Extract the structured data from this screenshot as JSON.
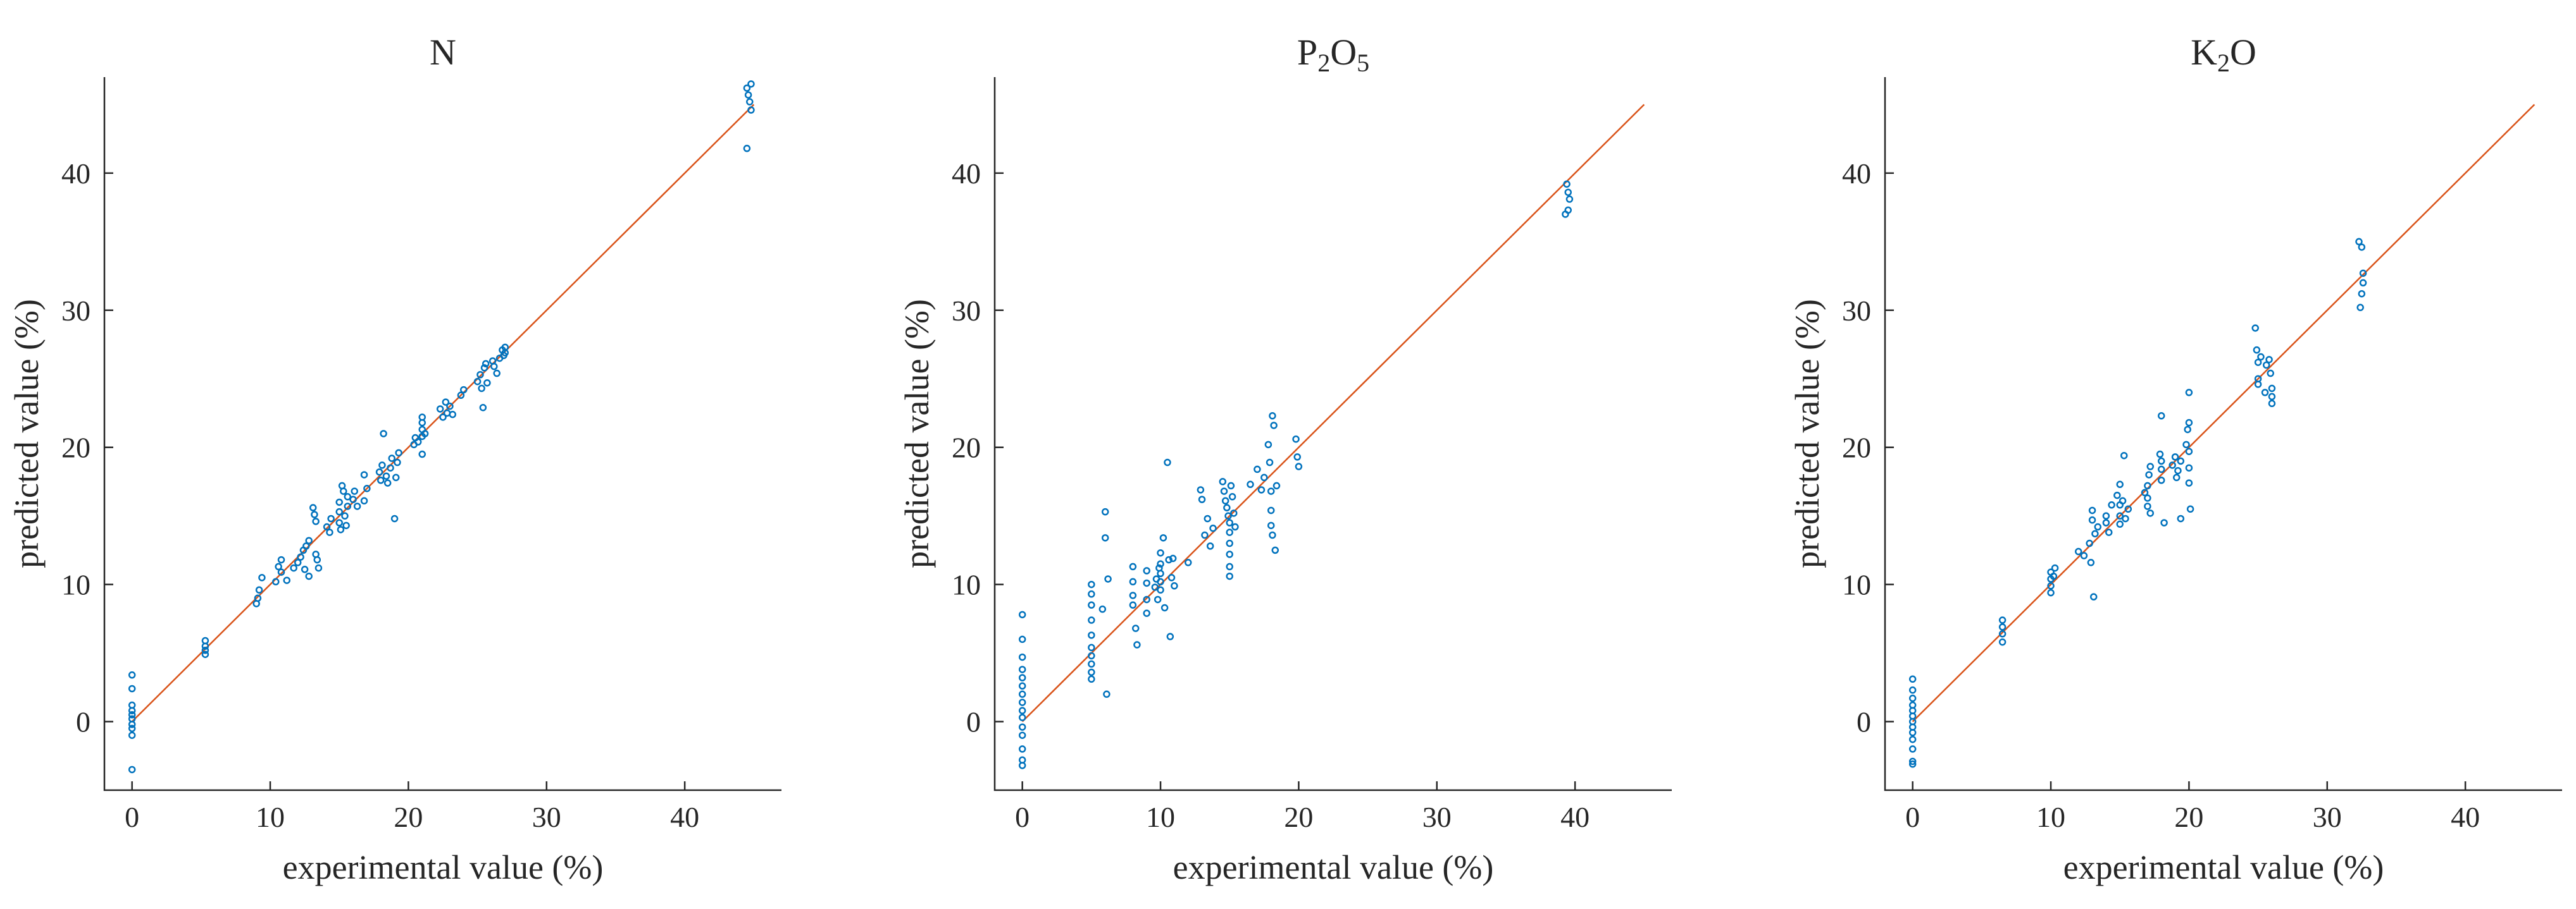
{
  "colors": {
    "points": "#0072BD",
    "reference_line": "#D95319",
    "axes": "#262626"
  },
  "chart_data": [
    {
      "type": "scatter",
      "title": "N",
      "title_parts": [
        [
          "N",
          "n"
        ]
      ],
      "xlabel": "experimental value (%)",
      "ylabel": "predicted value (%)",
      "xlim": [
        -2,
        47
      ],
      "ylim": [
        -5,
        47
      ],
      "xticks": [
        0,
        10,
        20,
        30,
        40
      ],
      "yticks": [
        0,
        10,
        20,
        30,
        40
      ],
      "x_tick_labels": [
        "0",
        "10",
        "20",
        "30",
        "40"
      ],
      "y_tick_labels": [
        "0",
        "10",
        "20",
        "30",
        "40"
      ],
      "reference_line": {
        "from": [
          0,
          0
        ],
        "to": [
          45,
          45
        ]
      },
      "points": [
        [
          0,
          3.4
        ],
        [
          0,
          2.4
        ],
        [
          0,
          1.2
        ],
        [
          0,
          0.8
        ],
        [
          0,
          0.5
        ],
        [
          0,
          0.2
        ],
        [
          0,
          -0.2
        ],
        [
          0,
          -0.5
        ],
        [
          0,
          -1.0
        ],
        [
          0,
          -3.5
        ],
        [
          5.3,
          5.9
        ],
        [
          5.3,
          5.5
        ],
        [
          5.3,
          5.2
        ],
        [
          5.3,
          4.9
        ],
        [
          9,
          8.6
        ],
        [
          9.1,
          9.0
        ],
        [
          9.2,
          9.6
        ],
        [
          9.4,
          10.5
        ],
        [
          10.4,
          10.2
        ],
        [
          10.6,
          11.3
        ],
        [
          10.8,
          11.8
        ],
        [
          10.8,
          10.9
        ],
        [
          11.2,
          10.3
        ],
        [
          11.7,
          11.2
        ],
        [
          12,
          11.6
        ],
        [
          12.2,
          12.0
        ],
        [
          12.4,
          12.5
        ],
        [
          12.5,
          11.1
        ],
        [
          12.6,
          12.8
        ],
        [
          12.8,
          13.2
        ],
        [
          12.8,
          10.6
        ],
        [
          13.1,
          15.6
        ],
        [
          13.2,
          15.1
        ],
        [
          13.3,
          14.6
        ],
        [
          13.3,
          12.2
        ],
        [
          13.4,
          11.8
        ],
        [
          13.5,
          11.2
        ],
        [
          14.1,
          14.2
        ],
        [
          14.3,
          13.8
        ],
        [
          14.4,
          14.8
        ],
        [
          15,
          16.0
        ],
        [
          15,
          15.3
        ],
        [
          15,
          14.5
        ],
        [
          15.1,
          14.0
        ],
        [
          15.2,
          17.2
        ],
        [
          15.3,
          16.8
        ],
        [
          15.4,
          15.0
        ],
        [
          15.5,
          14.3
        ],
        [
          15.6,
          16.4
        ],
        [
          15.6,
          15.7
        ],
        [
          16,
          16.2
        ],
        [
          16.1,
          16.8
        ],
        [
          16.3,
          15.7
        ],
        [
          16.8,
          16.1
        ],
        [
          16.8,
          18.0
        ],
        [
          17,
          17.0
        ],
        [
          17.9,
          18.2
        ],
        [
          18,
          17.6
        ],
        [
          18.1,
          18.7
        ],
        [
          18.2,
          21.0
        ],
        [
          18.4,
          17.9
        ],
        [
          18.5,
          17.4
        ],
        [
          18.7,
          18.5
        ],
        [
          18.8,
          19.2
        ],
        [
          19,
          14.8
        ],
        [
          19.1,
          17.8
        ],
        [
          19.2,
          18.9
        ],
        [
          19.3,
          19.6
        ],
        [
          20.4,
          20.2
        ],
        [
          20.5,
          20.7
        ],
        [
          20.7,
          20.4
        ],
        [
          21,
          21.3
        ],
        [
          21,
          21.8
        ],
        [
          21,
          22.2
        ],
        [
          21,
          20.8
        ],
        [
          21,
          19.5
        ],
        [
          21.2,
          21.0
        ],
        [
          22.3,
          22.8
        ],
        [
          22.5,
          22.2
        ],
        [
          22.7,
          23.3
        ],
        [
          22.8,
          22.5
        ],
        [
          23,
          23.0
        ],
        [
          23.2,
          22.4
        ],
        [
          23.8,
          23.8
        ],
        [
          24,
          24.2
        ],
        [
          25,
          24.8
        ],
        [
          25.2,
          25.3
        ],
        [
          25.3,
          24.3
        ],
        [
          25.4,
          22.9
        ],
        [
          25.5,
          25.8
        ],
        [
          25.6,
          26.1
        ],
        [
          25.7,
          24.7
        ],
        [
          26.1,
          26.3
        ],
        [
          26.2,
          25.9
        ],
        [
          26.4,
          25.4
        ],
        [
          26.6,
          26.5
        ],
        [
          26.8,
          27.1
        ],
        [
          26.9,
          26.7
        ],
        [
          27,
          27.3
        ],
        [
          27,
          26.9
        ],
        [
          44.5,
          46.2
        ],
        [
          44.6,
          45.7
        ],
        [
          44.7,
          45.2
        ],
        [
          44.8,
          44.6
        ],
        [
          44.8,
          46.5
        ],
        [
          44.5,
          41.8
        ]
      ]
    },
    {
      "type": "scatter",
      "title": "P2O5",
      "title_parts": [
        [
          "P",
          "n"
        ],
        [
          "2",
          "sub"
        ],
        [
          "O",
          "n"
        ],
        [
          "5",
          "sub"
        ]
      ],
      "xlabel": "experimental value (%)",
      "ylabel": "predicted value (%)",
      "xlim": [
        -2,
        47
      ],
      "ylim": [
        -5,
        47
      ],
      "xticks": [
        0,
        10,
        20,
        30,
        40
      ],
      "yticks": [
        0,
        10,
        20,
        30,
        40
      ],
      "x_tick_labels": [
        "0",
        "10",
        "20",
        "30",
        "40"
      ],
      "y_tick_labels": [
        "0",
        "10",
        "20",
        "30",
        "40"
      ],
      "reference_line": {
        "from": [
          0,
          0
        ],
        "to": [
          45,
          45
        ]
      },
      "points": [
        [
          0,
          7.8
        ],
        [
          0,
          6.0
        ],
        [
          0,
          4.7
        ],
        [
          0,
          3.8
        ],
        [
          0,
          3.2
        ],
        [
          0,
          2.6
        ],
        [
          0,
          2.0
        ],
        [
          0,
          1.4
        ],
        [
          0,
          0.8
        ],
        [
          0,
          0.3
        ],
        [
          0,
          -0.4
        ],
        [
          0,
          -1.0
        ],
        [
          0,
          -2.0
        ],
        [
          0,
          -2.8
        ],
        [
          0,
          -3.2
        ],
        [
          5,
          10.0
        ],
        [
          5,
          9.3
        ],
        [
          5,
          8.5
        ],
        [
          5,
          7.4
        ],
        [
          5,
          6.3
        ],
        [
          5,
          5.4
        ],
        [
          5,
          4.8
        ],
        [
          5,
          4.2
        ],
        [
          5,
          3.6
        ],
        [
          5,
          3.1
        ],
        [
          5.8,
          8.2
        ],
        [
          6,
          15.3
        ],
        [
          6,
          13.4
        ],
        [
          6.1,
          2.0
        ],
        [
          6.2,
          10.4
        ],
        [
          8,
          11.3
        ],
        [
          8,
          10.2
        ],
        [
          8,
          9.2
        ],
        [
          8,
          8.5
        ],
        [
          8.2,
          6.8
        ],
        [
          8.3,
          5.6
        ],
        [
          9,
          11.0
        ],
        [
          9,
          10.1
        ],
        [
          9,
          8.9
        ],
        [
          9,
          7.9
        ],
        [
          9.6,
          9.8
        ],
        [
          9.7,
          10.4
        ],
        [
          9.8,
          8.9
        ],
        [
          9.9,
          11.2
        ],
        [
          10,
          12.3
        ],
        [
          10,
          11.5
        ],
        [
          10,
          10.8
        ],
        [
          10,
          10.2
        ],
        [
          10,
          9.6
        ],
        [
          10.2,
          13.4
        ],
        [
          10.3,
          8.3
        ],
        [
          10.5,
          18.9
        ],
        [
          10.6,
          11.8
        ],
        [
          10.7,
          6.2
        ],
        [
          10.8,
          10.5
        ],
        [
          10.9,
          11.9
        ],
        [
          11,
          9.9
        ],
        [
          12,
          11.6
        ],
        [
          12.9,
          16.9
        ],
        [
          13,
          16.2
        ],
        [
          13.2,
          13.6
        ],
        [
          13.4,
          14.8
        ],
        [
          13.6,
          12.8
        ],
        [
          13.8,
          14.1
        ],
        [
          14.5,
          17.5
        ],
        [
          14.6,
          16.8
        ],
        [
          14.7,
          16.1
        ],
        [
          14.8,
          15.6
        ],
        [
          14.9,
          15.0
        ],
        [
          15,
          14.5
        ],
        [
          15,
          13.8
        ],
        [
          15,
          13.0
        ],
        [
          15,
          12.2
        ],
        [
          15,
          11.3
        ],
        [
          15,
          10.6
        ],
        [
          15.1,
          17.2
        ],
        [
          15.2,
          16.4
        ],
        [
          15.3,
          15.2
        ],
        [
          15.4,
          14.2
        ],
        [
          16.5,
          17.3
        ],
        [
          17,
          18.4
        ],
        [
          17.3,
          16.9
        ],
        [
          17.5,
          17.8
        ],
        [
          17.8,
          20.2
        ],
        [
          17.9,
          18.9
        ],
        [
          18,
          16.8
        ],
        [
          18,
          15.4
        ],
        [
          18,
          14.3
        ],
        [
          18.1,
          13.6
        ],
        [
          18.1,
          22.3
        ],
        [
          18.2,
          21.6
        ],
        [
          18.3,
          12.5
        ],
        [
          18.4,
          17.2
        ],
        [
          19.8,
          20.6
        ],
        [
          19.9,
          19.3
        ],
        [
          20,
          18.6
        ],
        [
          39.4,
          39.2
        ],
        [
          39.5,
          38.6
        ],
        [
          39.6,
          38.1
        ],
        [
          39.5,
          37.3
        ],
        [
          39.3,
          37.0
        ]
      ]
    },
    {
      "type": "scatter",
      "title": "K2O",
      "title_parts": [
        [
          "K",
          "n"
        ],
        [
          "2",
          "sub"
        ],
        [
          "O",
          "n"
        ]
      ],
      "xlabel": "experimental value (%)",
      "ylabel": "predicted value (%)",
      "xlim": [
        -2,
        47
      ],
      "ylim": [
        -5,
        47
      ],
      "xticks": [
        0,
        10,
        20,
        30,
        40
      ],
      "yticks": [
        0,
        10,
        20,
        30,
        40
      ],
      "x_tick_labels": [
        "0",
        "10",
        "20",
        "30",
        "40"
      ],
      "y_tick_labels": [
        "0",
        "10",
        "20",
        "30",
        "40"
      ],
      "reference_line": {
        "from": [
          0,
          0
        ],
        "to": [
          45,
          45
        ]
      },
      "points": [
        [
          0,
          3.1
        ],
        [
          0,
          2.3
        ],
        [
          0,
          1.7
        ],
        [
          0,
          1.2
        ],
        [
          0,
          0.8
        ],
        [
          0,
          0.4
        ],
        [
          0,
          0.0
        ],
        [
          0,
          -0.4
        ],
        [
          0,
          -0.8
        ],
        [
          0,
          -1.3
        ],
        [
          0,
          -2.0
        ],
        [
          0,
          -2.9
        ],
        [
          0,
          -3.1
        ],
        [
          6.5,
          7.4
        ],
        [
          6.5,
          6.9
        ],
        [
          6.5,
          6.4
        ],
        [
          6.5,
          5.8
        ],
        [
          10,
          10.9
        ],
        [
          10,
          10.4
        ],
        [
          10,
          9.9
        ],
        [
          10,
          9.4
        ],
        [
          10.2,
          10.6
        ],
        [
          10.3,
          11.2
        ],
        [
          12,
          12.4
        ],
        [
          12.4,
          12.1
        ],
        [
          12.8,
          13.0
        ],
        [
          12.9,
          11.6
        ],
        [
          13,
          15.4
        ],
        [
          13,
          14.7
        ],
        [
          13.1,
          9.1
        ],
        [
          13.2,
          13.7
        ],
        [
          13.4,
          14.2
        ],
        [
          14,
          14.5
        ],
        [
          14,
          15.0
        ],
        [
          14.2,
          13.8
        ],
        [
          14.4,
          15.8
        ],
        [
          14.8,
          16.5
        ],
        [
          15,
          17.3
        ],
        [
          15,
          15.8
        ],
        [
          15,
          15.0
        ],
        [
          15,
          14.4
        ],
        [
          15.2,
          16.1
        ],
        [
          15.3,
          19.4
        ],
        [
          15.4,
          14.8
        ],
        [
          15.6,
          15.5
        ],
        [
          16.8,
          16.7
        ],
        [
          17,
          17.2
        ],
        [
          17,
          16.3
        ],
        [
          17,
          15.7
        ],
        [
          17.1,
          18.0
        ],
        [
          17.2,
          18.6
        ],
        [
          17.2,
          15.2
        ],
        [
          17.9,
          19.5
        ],
        [
          18,
          19.0
        ],
        [
          18,
          18.4
        ],
        [
          18,
          17.6
        ],
        [
          18,
          22.3
        ],
        [
          18.2,
          14.5
        ],
        [
          18.8,
          18.7
        ],
        [
          19,
          19.3
        ],
        [
          19.1,
          17.8
        ],
        [
          19.2,
          18.3
        ],
        [
          19.4,
          19.0
        ],
        [
          19.4,
          14.8
        ],
        [
          19.8,
          20.2
        ],
        [
          19.9,
          21.3
        ],
        [
          20,
          24.0
        ],
        [
          20,
          21.8
        ],
        [
          20,
          19.7
        ],
        [
          20,
          18.5
        ],
        [
          20,
          17.4
        ],
        [
          20.1,
          15.5
        ],
        [
          24.8,
          28.7
        ],
        [
          24.9,
          27.1
        ],
        [
          25,
          26.2
        ],
        [
          25,
          25.0
        ],
        [
          25,
          24.6
        ],
        [
          25.2,
          26.6
        ],
        [
          25.6,
          26.0
        ],
        [
          25.8,
          26.4
        ],
        [
          25.9,
          25.4
        ],
        [
          26,
          24.3
        ],
        [
          26,
          23.7
        ],
        [
          26,
          23.2
        ],
        [
          25.5,
          24.0
        ],
        [
          32.3,
          35.0
        ],
        [
          32.5,
          34.6
        ],
        [
          32.6,
          32.7
        ],
        [
          32.6,
          32.0
        ],
        [
          32.5,
          31.2
        ],
        [
          32.4,
          30.2
        ]
      ]
    }
  ]
}
